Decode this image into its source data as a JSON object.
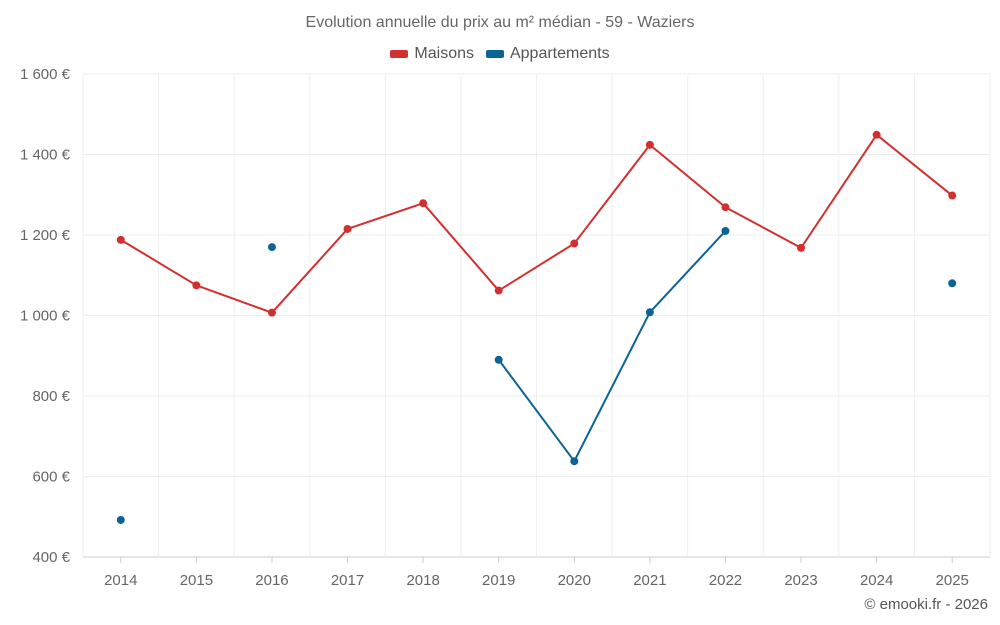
{
  "chart_data": {
    "type": "line",
    "title": "Evolution annuelle du prix au m² médian - 59 - Waziers",
    "categories": [
      "2014",
      "2015",
      "2016",
      "2017",
      "2018",
      "2019",
      "2020",
      "2021",
      "2022",
      "2023",
      "2024",
      "2025"
    ],
    "series": [
      {
        "name": "Maisons",
        "color": "#d32f2f",
        "values": [
          1188,
          1075,
          1007,
          1215,
          1279,
          1062,
          1179,
          1424,
          1269,
          1168,
          1449,
          1298
        ]
      },
      {
        "name": "Appartements",
        "color": "#0b6496",
        "values": [
          492,
          null,
          1170,
          null,
          null,
          890,
          638,
          1008,
          1210,
          null,
          null,
          1080
        ]
      }
    ],
    "ylim": [
      400,
      1600
    ],
    "yticks": [
      400,
      600,
      800,
      1000,
      1200,
      1400,
      1600
    ],
    "ytick_labels": [
      "400 €",
      "600 €",
      "800 €",
      "1 000 €",
      "1 200 €",
      "1 400 €",
      "1 600 €"
    ],
    "grid": true,
    "legend_position": "top-center"
  },
  "footer": {
    "credit": "© emooki.fr - 2026"
  }
}
